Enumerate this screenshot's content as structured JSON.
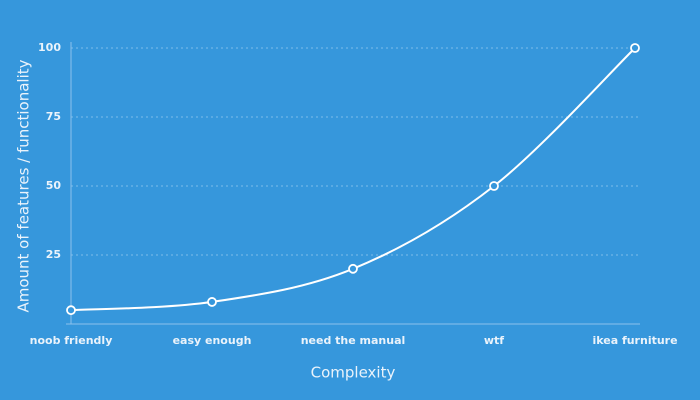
{
  "chart_data": {
    "type": "line",
    "x_label": "Complexity",
    "y_label": "Amount of features / functionality",
    "categories": [
      "noob friendly",
      "easy enough",
      "need the manual",
      "wtf",
      "ikea furniture"
    ],
    "values": [
      5,
      8,
      20,
      50,
      100
    ],
    "color": "#ffffff",
    "ylim": [
      0,
      100
    ],
    "yticks": [
      25,
      50,
      75,
      100
    ],
    "grid": true
  }
}
